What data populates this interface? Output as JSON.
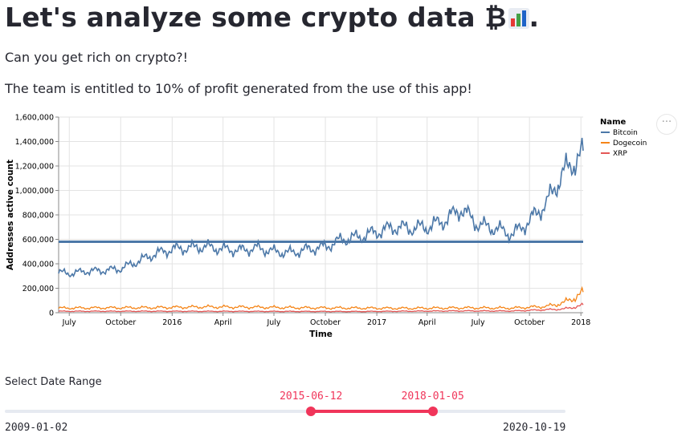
{
  "page": {
    "title": "Let's analyze some crypto data ₿",
    "title_end": ".",
    "subtitle": "Can you get rich on crypto?!",
    "notice": "The team is entitled to 10% of profit generated from the use of this app!"
  },
  "chart_menu_label": "···",
  "chart_data": {
    "type": "line",
    "xlabel": "Time",
    "ylabel": "Addresses active count",
    "x_range": [
      "2015-06-12",
      "2018-01-05"
    ],
    "ylim": [
      0,
      1600000
    ],
    "y_ticks": [
      0,
      200000,
      400000,
      600000,
      800000,
      1000000,
      1200000,
      1400000,
      1600000
    ],
    "y_tick_labels": [
      "0",
      "200,000",
      "400,000",
      "600,000",
      "800,000",
      "1,000,000",
      "1,200,000",
      "1,400,000",
      "1,600,000"
    ],
    "x_ticks": [
      {
        "date": "2015-07-01",
        "label": "July"
      },
      {
        "date": "2015-10-01",
        "label": "October"
      },
      {
        "date": "2016-01-01",
        "label": "2016"
      },
      {
        "date": "2016-04-01",
        "label": "April"
      },
      {
        "date": "2016-07-01",
        "label": "July"
      },
      {
        "date": "2016-10-01",
        "label": "October"
      },
      {
        "date": "2017-01-01",
        "label": "2017"
      },
      {
        "date": "2017-04-01",
        "label": "April"
      },
      {
        "date": "2017-07-01",
        "label": "July"
      },
      {
        "date": "2017-10-01",
        "label": "October"
      },
      {
        "date": "2018-01-01",
        "label": "2018"
      }
    ],
    "grid": true,
    "legend": {
      "title": "Name",
      "placement": "right"
    },
    "rule": {
      "y": 580000,
      "color": "#4c78a8"
    },
    "series": [
      {
        "name": "Bitcoin",
        "color": "#4c78a8",
        "x": [
          "2015-06-12",
          "2015-07-01",
          "2015-08-01",
          "2015-09-01",
          "2015-10-01",
          "2015-11-01",
          "2015-12-01",
          "2016-01-01",
          "2016-02-01",
          "2016-03-01",
          "2016-04-01",
          "2016-05-01",
          "2016-06-01",
          "2016-07-01",
          "2016-08-01",
          "2016-09-01",
          "2016-10-01",
          "2016-11-01",
          "2016-12-01",
          "2017-01-01",
          "2017-02-01",
          "2017-03-01",
          "2017-04-01",
          "2017-05-01",
          "2017-06-01",
          "2017-07-01",
          "2017-08-01",
          "2017-09-01",
          "2017-10-01",
          "2017-11-01",
          "2017-12-01",
          "2018-01-05"
        ],
        "values": [
          330000,
          320000,
          340000,
          345000,
          360000,
          420000,
          480000,
          520000,
          530000,
          540000,
          520000,
          510000,
          530000,
          500000,
          490000,
          520000,
          540000,
          600000,
          620000,
          660000,
          700000,
          690000,
          700000,
          750000,
          850000,
          720000,
          690000,
          640000,
          750000,
          900000,
          1150000,
          1300000
        ]
      },
      {
        "name": "Dogecoin",
        "color": "#f58518",
        "x": [
          "2015-06-12",
          "2015-09-01",
          "2015-12-01",
          "2016-03-01",
          "2016-06-01",
          "2016-09-01",
          "2016-12-01",
          "2017-03-01",
          "2017-06-01",
          "2017-09-01",
          "2017-11-01",
          "2017-12-01",
          "2018-01-05"
        ],
        "values": [
          38000,
          40000,
          42000,
          48000,
          45000,
          40000,
          38000,
          36000,
          40000,
          38000,
          52000,
          80000,
          160000
        ]
      },
      {
        "name": "XRP",
        "color": "#e45756",
        "x": [
          "2015-06-12",
          "2015-12-01",
          "2016-06-01",
          "2016-12-01",
          "2017-06-01",
          "2017-09-01",
          "2017-12-01",
          "2018-01-05"
        ],
        "values": [
          12000,
          12000,
          11000,
          10000,
          15000,
          14000,
          30000,
          60000
        ]
      }
    ]
  },
  "slider": {
    "label": "Select Date Range",
    "min_label": "2009-01-02",
    "max_label": "2020-10-19",
    "start_label": "2015-06-12",
    "end_label": "2018-01-05",
    "start_fraction": 0.546,
    "end_fraction": 0.763
  }
}
